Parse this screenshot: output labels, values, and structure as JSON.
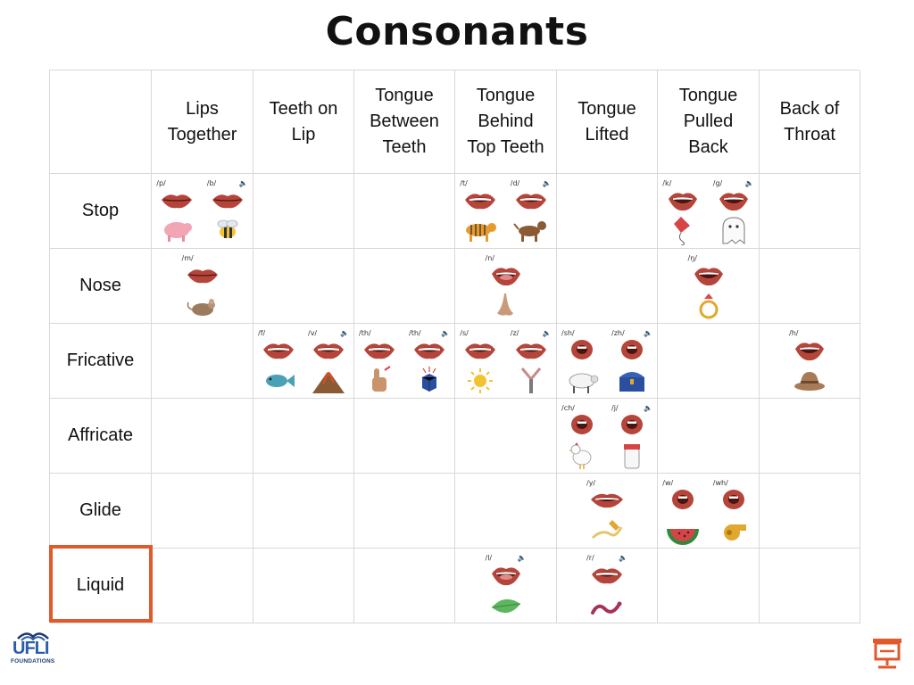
{
  "title": "Consonants",
  "columns": [
    "Lips\nTogether",
    "Teeth on\nLip",
    "Tongue\nBetween\nTeeth",
    "Tongue\nBehind\nTop Teeth",
    "Tongue\nLifted",
    "Tongue\nPulled\nBack",
    "Back of\nThroat"
  ],
  "rows": [
    "Stop",
    "Nose",
    "Fricative",
    "Affricate",
    "Glide",
    "Liquid"
  ],
  "cells": {
    "stop_lips": [
      {
        "p": "/p/",
        "pic": "pig-icon",
        "m": "closed"
      },
      {
        "p": "/b/",
        "pic": "bee-icon",
        "m": "closed",
        "spk": true
      }
    ],
    "stop_behind": [
      {
        "p": "/t/",
        "pic": "tiger-icon",
        "m": "teeth"
      },
      {
        "p": "/d/",
        "pic": "dog-icon",
        "m": "teeth",
        "spk": true
      }
    ],
    "stop_pulled": [
      {
        "p": "/k/",
        "pic": "kite-icon",
        "m": "open"
      },
      {
        "p": "/g/",
        "pic": "ghost-icon",
        "m": "open",
        "spk": true
      }
    ],
    "nose_lips": [
      {
        "p": "/m/",
        "pic": "mouse-icon",
        "m": "closed"
      }
    ],
    "nose_behind": [
      {
        "p": "/n/",
        "pic": "nose-icon",
        "m": "tongue"
      }
    ],
    "nose_pulled": [
      {
        "p": "/ŋ/",
        "pic": "ring-icon",
        "m": "open"
      }
    ],
    "fric_teeth": [
      {
        "p": "/f/",
        "pic": "fish-icon",
        "m": "teeth"
      },
      {
        "p": "/v/",
        "pic": "volcano-icon",
        "m": "teeth",
        "spk": true
      }
    ],
    "fric_between": [
      {
        "p": "/th/",
        "pic": "thumb-icon",
        "m": "teeth"
      },
      {
        "p": "/th/",
        "pic": "cube-icon",
        "m": "teeth",
        "spk": true
      }
    ],
    "fric_behind": [
      {
        "p": "/s/",
        "pic": "sun-icon",
        "m": "teeth"
      },
      {
        "p": "/z/",
        "pic": "zipper-icon",
        "m": "teeth",
        "spk": true
      }
    ],
    "fric_lifted": [
      {
        "p": "/sh/",
        "pic": "sheep-icon",
        "m": "round"
      },
      {
        "p": "/zh/",
        "pic": "treasure-icon",
        "m": "round",
        "spk": true
      }
    ],
    "fric_throat": [
      {
        "p": "/h/",
        "pic": "hat-icon",
        "m": "open"
      }
    ],
    "aff_lifted": [
      {
        "p": "/ch/",
        "pic": "chicken-icon",
        "m": "round"
      },
      {
        "p": "/j/",
        "pic": "jar-icon",
        "m": "round",
        "spk": true
      }
    ],
    "glide_lifted": [
      {
        "p": "/y/",
        "pic": "yarn-icon",
        "m": "wide"
      }
    ],
    "glide_pulled": [
      {
        "p": "/w/",
        "pic": "watermelon-icon",
        "m": "round"
      },
      {
        "p": "/wh/",
        "pic": "whistle-icon",
        "m": "round"
      }
    ],
    "liquid_behind": [
      {
        "p": "/l/",
        "pic": "leaf-icon",
        "m": "tongue",
        "spk": true
      }
    ],
    "liquid_lifted": [
      {
        "p": "/r/",
        "pic": "worm-icon",
        "m": "teeth",
        "spk": true
      }
    ]
  },
  "highlight_row": "Liquid",
  "logo": {
    "mark": "UFLI",
    "sub": "FOUNDATIONS"
  },
  "speaker_glyph": "🔈",
  "accent": "#e05a2b"
}
